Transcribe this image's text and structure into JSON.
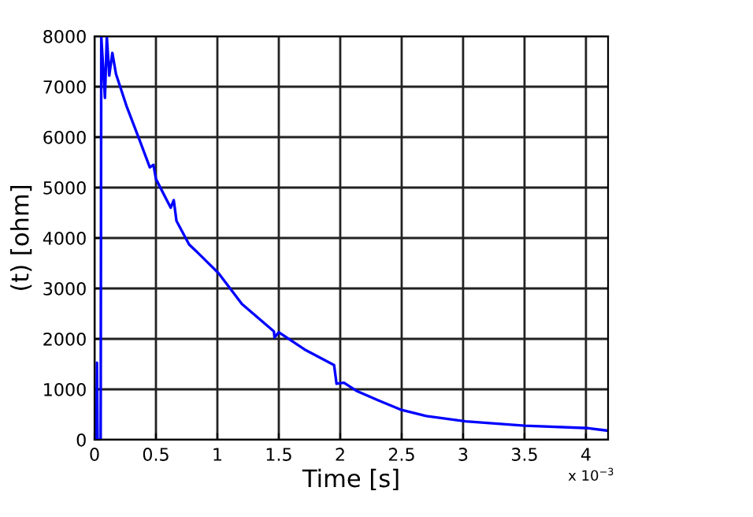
{
  "chart_data": {
    "type": "line",
    "xlabel": "Time [s]",
    "ylabel": "(t) [ohm]",
    "annotations": [
      "x 10$^{−3}$"
    ],
    "x": [
      0,
      0.015,
      0.02,
      0.025,
      0.05,
      0.055,
      0.085,
      0.1,
      0.12,
      0.145,
      0.175,
      0.26,
      0.37,
      0.45,
      0.48,
      0.5,
      0.62,
      0.645,
      0.667,
      0.77,
      0.84,
      1.01,
      1.2,
      1.46,
      1.465,
      1.5,
      1.71,
      1.95,
      1.97,
      2.03,
      2.14,
      2.31,
      2.5,
      2.7,
      3.02,
      3.5,
      4.02,
      4.18
    ],
    "series": [
      {
        "color": "#0000ff",
        "values": [
          0,
          0,
          1530,
          0,
          0,
          8000,
          6780,
          8000,
          7220,
          7670,
          7250,
          6620,
          5920,
          5400,
          5450,
          5170,
          4600,
          4750,
          4340,
          3870,
          3710,
          3300,
          2690,
          2150,
          2030,
          2130,
          1790,
          1480,
          1110,
          1130,
          960,
          780,
          590,
          470,
          365,
          280,
          230,
          180
        ]
      }
    ],
    "xlim": [
      0,
      4.18
    ],
    "ylim": [
      0,
      8000
    ],
    "xticks": [
      0,
      0.5,
      1,
      1.5,
      2,
      2.5,
      3,
      3.5,
      4
    ],
    "yticks": [
      0,
      1000,
      2000,
      3000,
      4000,
      5000,
      6000,
      7000,
      8000
    ],
    "grid": true,
    "marker": "none",
    "line_style": "solid"
  }
}
